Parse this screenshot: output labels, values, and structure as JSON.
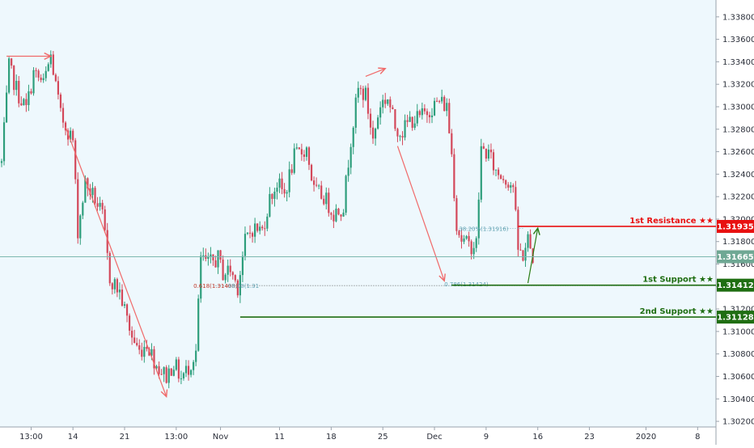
{
  "colors": {
    "background": "#eef8fd",
    "axis_background": "#ffffff",
    "up_candle": "#2e9e7c",
    "down_candle": "#d3485a",
    "resistance": "#e81010",
    "support": "#1f6e12",
    "price_line": "#7cb8b0",
    "price_badge": "#6fa894",
    "arrow_red": "#f06a6a",
    "arrow_green": "#2a7d15",
    "fib_red": "#c0392b",
    "fib_teal": "#5fa0b0"
  },
  "chart_data": {
    "type": "candlestick",
    "ylim": [
      1.3015,
      1.3395
    ],
    "y_ticks": [
      "1.33800",
      "1.33600",
      "1.33400",
      "1.33200",
      "1.33000",
      "1.32800",
      "1.32600",
      "1.32400",
      "1.32200",
      "1.32000",
      "1.31800",
      "1.31600",
      "1.31400",
      "1.31200",
      "1.31000",
      "1.30800",
      "1.30600",
      "1.30400",
      "1.30200"
    ],
    "y_tick_values": [
      1.338,
      1.336,
      1.334,
      1.332,
      1.33,
      1.328,
      1.326,
      1.324,
      1.322,
      1.32,
      1.318,
      1.316,
      1.314,
      1.312,
      1.31,
      1.308,
      1.306,
      1.304,
      1.302
    ],
    "x_ticks": [
      "13:00",
      "14",
      "21",
      "13:00",
      "Nov",
      "11",
      "18",
      "25",
      "Dec",
      "9",
      "16",
      "23",
      "2020",
      "8"
    ],
    "x_tick_index": [
      12,
      29,
      50,
      71,
      89,
      113,
      134,
      155,
      176,
      197,
      218,
      239,
      262,
      283
    ],
    "levels": [
      {
        "name": "1st Resistance ★★",
        "value": 1.31935,
        "badge": "1.31935",
        "kind": "resistance",
        "start_index": 210
      },
      {
        "name": "1st Support ★★",
        "value": 1.31412,
        "badge": "1.31412",
        "kind": "support",
        "start_index": 183
      },
      {
        "name": "2nd Support ★★",
        "value": 1.31128,
        "badge": "1.31128",
        "kind": "support",
        "start_index": 97
      }
    ],
    "current_price": {
      "value": 1.31665,
      "badge": "1.31665"
    },
    "fib_labels": [
      {
        "text": "0.618(1.31408)",
        "index": 78,
        "value": 1.31408,
        "color": "fib_red"
      },
      {
        "text": "38.00(1.31",
        "index": 92,
        "value": 1.31408,
        "color": "fib_teal"
      },
      {
        "text": "38.20%(1.31916)",
        "index": 186,
        "value": 1.31916,
        "color": "fib_teal"
      },
      {
        "text": "0.786(1.31424)",
        "index": 180,
        "value": 1.31424,
        "color": "fib_teal"
      }
    ],
    "arrows": [
      {
        "from": [
          2,
          1.3345
        ],
        "to": [
          20,
          1.3345
        ],
        "color": "arrow_red"
      },
      {
        "from": [
          26,
          1.3282
        ],
        "to": [
          67,
          1.3042
        ],
        "color": "arrow_red"
      },
      {
        "from": [
          148,
          1.3327
        ],
        "to": [
          156,
          1.3334
        ],
        "color": "arrow_red"
      },
      {
        "from": [
          161,
          1.3265
        ],
        "to": [
          180,
          1.3145
        ],
        "color": "arrow_red"
      },
      {
        "from": [
          214,
          1.3143
        ],
        "to": [
          218,
          1.3192
        ],
        "color": "arrow_green"
      }
    ],
    "anchors": [
      [
        0,
        1.325
      ],
      [
        3,
        1.3335
      ],
      [
        7,
        1.331
      ],
      [
        10,
        1.3298
      ],
      [
        13,
        1.333
      ],
      [
        17,
        1.332
      ],
      [
        20,
        1.3345
      ],
      [
        24,
        1.3292
      ],
      [
        29,
        1.327
      ],
      [
        31,
        1.319
      ],
      [
        34,
        1.3232
      ],
      [
        38,
        1.3218
      ],
      [
        41,
        1.3202
      ],
      [
        44,
        1.3148
      ],
      [
        48,
        1.3135
      ],
      [
        53,
        1.3095
      ],
      [
        56,
        1.3082
      ],
      [
        59,
        1.309
      ],
      [
        63,
        1.307
      ],
      [
        67,
        1.306
      ],
      [
        70,
        1.3072
      ],
      [
        73,
        1.3058
      ],
      [
        76,
        1.3068
      ],
      [
        79,
        1.3082
      ],
      [
        81,
        1.3165
      ],
      [
        84,
        1.316
      ],
      [
        88,
        1.3165
      ],
      [
        90,
        1.3152
      ],
      [
        93,
        1.3155
      ],
      [
        96,
        1.314
      ],
      [
        99,
        1.318
      ],
      [
        102,
        1.3192
      ],
      [
        106,
        1.319
      ],
      [
        109,
        1.3218
      ],
      [
        112,
        1.3232
      ],
      [
        115,
        1.3222
      ],
      [
        119,
        1.3255
      ],
      [
        124,
        1.3263
      ],
      [
        127,
        1.3225
      ],
      [
        131,
        1.322
      ],
      [
        135,
        1.3205
      ],
      [
        139,
        1.3212
      ],
      [
        142,
        1.3272
      ],
      [
        145,
        1.3315
      ],
      [
        148,
        1.331
      ],
      [
        151,
        1.327
      ],
      [
        154,
        1.3303
      ],
      [
        157,
        1.3308
      ],
      [
        160,
        1.3282
      ],
      [
        163,
        1.3278
      ],
      [
        166,
        1.3288
      ],
      [
        170,
        1.329
      ],
      [
        174,
        1.3298
      ],
      [
        178,
        1.3305
      ],
      [
        181,
        1.33
      ],
      [
        183,
        1.3258
      ],
      [
        185,
        1.3195
      ],
      [
        187,
        1.3182
      ],
      [
        190,
        1.3176
      ],
      [
        193,
        1.3178
      ],
      [
        195,
        1.3262
      ],
      [
        198,
        1.3258
      ],
      [
        201,
        1.3242
      ],
      [
        205,
        1.3236
      ],
      [
        208,
        1.323
      ],
      [
        210,
        1.3172
      ],
      [
        212,
        1.3168
      ],
      [
        214,
        1.3182
      ],
      [
        216,
        1.3166
      ]
    ],
    "candle_count": 217,
    "seed": 7
  }
}
